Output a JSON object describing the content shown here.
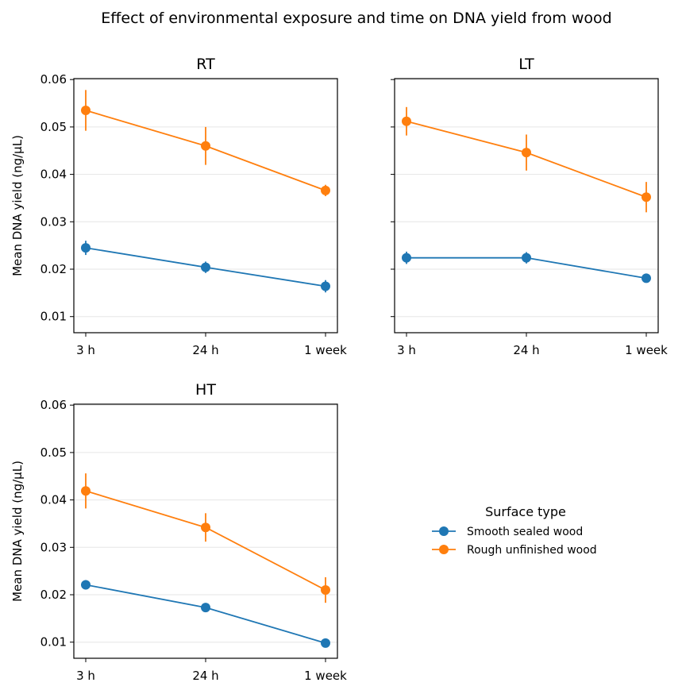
{
  "figure": {
    "title": "Effect of environmental exposure and time on DNA yield from wood"
  },
  "legend": {
    "title": "Surface type",
    "entries": [
      {
        "label": "Smooth sealed wood",
        "color": "#1f77b4"
      },
      {
        "label": "Rough unfinished wood",
        "color": "#ff7f0e"
      }
    ],
    "placement": "right of bottom-left panel"
  },
  "chart_data": [
    {
      "type": "line",
      "title": "RT",
      "categories": [
        "3 h",
        "24 h",
        "1 week"
      ],
      "xlabel": "",
      "ylabel": "Mean DNA yield (ng/µL)",
      "ylim": [
        0.0066,
        0.0602
      ],
      "yticks": [
        "0.01",
        "0.02",
        "0.03",
        "0.04",
        "0.05",
        "0.06"
      ],
      "grid": "horizontal",
      "series": [
        {
          "name": "Smooth sealed wood",
          "color": "#1f77b4",
          "values": [
            0.0245,
            0.0204,
            0.0164
          ],
          "err": [
            0.0015,
            0.0012,
            0.0013
          ]
        },
        {
          "name": "Rough unfinished wood",
          "color": "#ff7f0e",
          "values": [
            0.0535,
            0.046,
            0.0366
          ],
          "err": [
            0.0043,
            0.004,
            0.0012
          ]
        }
      ]
    },
    {
      "type": "line",
      "title": "LT",
      "categories": [
        "3 h",
        "24 h",
        "1 week"
      ],
      "xlabel": "",
      "ylabel": "",
      "ylim": [
        0.0066,
        0.0602
      ],
      "yticks": [],
      "grid": "horizontal",
      "series": [
        {
          "name": "Smooth sealed wood",
          "color": "#1f77b4",
          "values": [
            0.0224,
            0.0224,
            0.0181
          ],
          "err": [
            0.0013,
            0.0012,
            0.0008
          ]
        },
        {
          "name": "Rough unfinished wood",
          "color": "#ff7f0e",
          "values": [
            0.0512,
            0.0446,
            0.0352
          ],
          "err": [
            0.003,
            0.0038,
            0.0032
          ]
        }
      ]
    },
    {
      "type": "line",
      "title": "HT",
      "categories": [
        "3 h",
        "24 h",
        "1 week"
      ],
      "xlabel": "",
      "ylabel": "Mean DNA yield (ng/µL)",
      "ylim": [
        0.0066,
        0.0602
      ],
      "yticks": [
        "0.01",
        "0.02",
        "0.03",
        "0.04",
        "0.05",
        "0.06"
      ],
      "grid": "horizontal",
      "series": [
        {
          "name": "Smooth sealed wood",
          "color": "#1f77b4",
          "values": [
            0.0221,
            0.0173,
            0.0098
          ],
          "err": [
            0.001,
            0.0008,
            0.0005
          ]
        },
        {
          "name": "Rough unfinished wood",
          "color": "#ff7f0e",
          "values": [
            0.0419,
            0.0342,
            0.021
          ],
          "err": [
            0.0037,
            0.003,
            0.0027
          ]
        }
      ]
    }
  ]
}
